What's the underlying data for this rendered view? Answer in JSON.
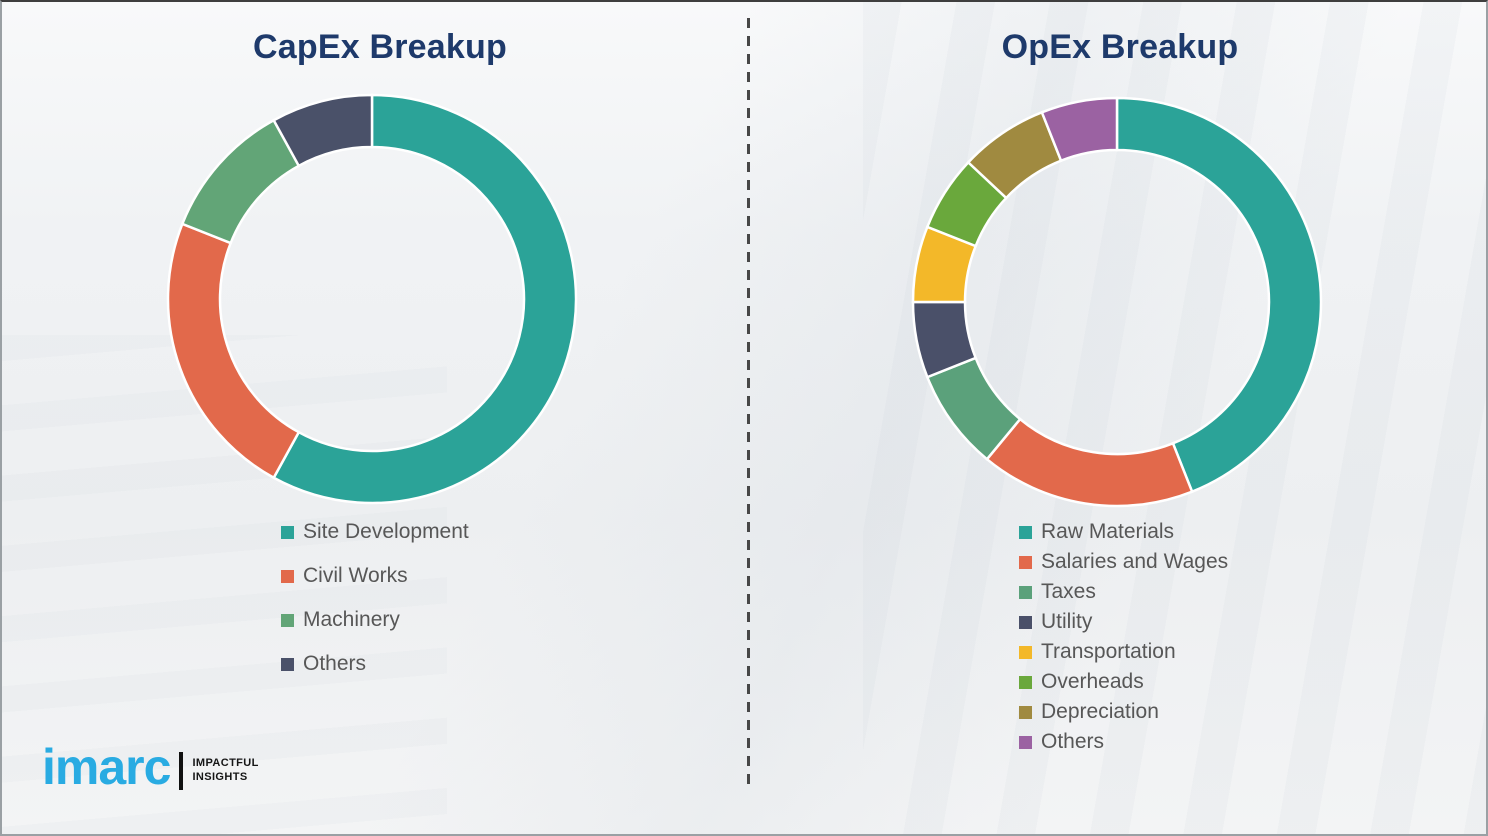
{
  "page": {
    "background_color": "#eff1f2",
    "divider_style": "vertical-dashed",
    "divider_color": "#474747",
    "title_color": "#1e3a6b",
    "legend_text_color": "#575757"
  },
  "chart_data": [
    {
      "type": "pie",
      "subtype": "donut",
      "title": "CapEx Breakup",
      "labels": [
        "Site Development",
        "Civil Works",
        "Machinery",
        "Others"
      ],
      "values": [
        58,
        23,
        11,
        8
      ],
      "unit": "percent",
      "colors": [
        "#2ba398",
        "#e2694b",
        "#62a577",
        "#4a5169"
      ],
      "start_angle_deg": 0,
      "direction": "clockwise",
      "legend_position": "below-left",
      "data_labels_shown": false
    },
    {
      "type": "pie",
      "subtype": "donut",
      "title": "OpEx Breakup",
      "labels": [
        "Raw Materials",
        "Salaries and Wages",
        "Taxes",
        "Utility",
        "Transportation",
        "Overheads",
        "Depreciation",
        "Others"
      ],
      "values": [
        44,
        17,
        8,
        6,
        6,
        6,
        7,
        6
      ],
      "unit": "percent",
      "colors": [
        "#2ba398",
        "#e2694b",
        "#5ba17b",
        "#4a5069",
        "#f3b829",
        "#6aa83c",
        "#a08a40",
        "#9b62a2"
      ],
      "start_angle_deg": 0,
      "direction": "clockwise",
      "legend_position": "below-left",
      "data_labels_shown": false
    }
  ],
  "logo": {
    "brand": "imarc",
    "brand_color": "#29abe2",
    "tagline": [
      "IMPACTFUL",
      "INSIGHTS"
    ]
  }
}
